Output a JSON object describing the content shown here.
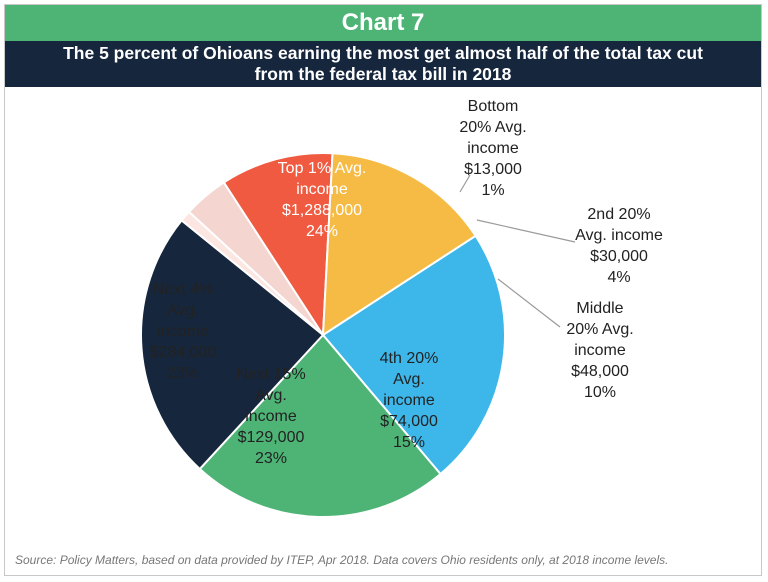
{
  "header": {
    "chart_number": "Chart 7",
    "title": "The 5 percent of Ohioans earning the most get almost half of the total tax cut\nfrom the federal tax bill in 2018"
  },
  "source": "Source: Policy Matters, based on data provided by ITEP, Apr 2018. Data covers Ohio residents only, at 2018 income levels.",
  "colors": {
    "title_bar": "#4db476",
    "subtitle_bar": "#16263d"
  },
  "chart_data": {
    "type": "pie",
    "title": "Chart 7",
    "slices": [
      {
        "name": "Bottom 20%",
        "avg_income": "$13,000",
        "value": 1,
        "label_lines": [
          "Bottom",
          "20% Avg.",
          "income",
          "$13,000",
          "1%"
        ],
        "color": "#fbe6e2"
      },
      {
        "name": "2nd 20%",
        "avg_income": "$30,000",
        "value": 4,
        "label_lines": [
          "2nd 20%",
          "Avg. income",
          "$30,000",
          "4%"
        ],
        "color": "#f4d5cf"
      },
      {
        "name": "Middle 20%",
        "avg_income": "$48,000",
        "value": 10,
        "label_lines": [
          "Middle",
          "20% Avg.",
          "income",
          "$48,000",
          "10%"
        ],
        "color": "#ef5a40"
      },
      {
        "name": "4th 20%",
        "avg_income": "$74,000",
        "value": 15,
        "label_lines": [
          "4th 20%",
          "Avg.",
          "income",
          "$74,000",
          "15%"
        ],
        "color": "#f6bb44"
      },
      {
        "name": "Next 15%",
        "avg_income": "$129,000",
        "value": 23,
        "label_lines": [
          "Next 15%",
          "Avg.",
          "income",
          "$129,000",
          "23%"
        ],
        "color": "#3db7ea"
      },
      {
        "name": "Next 4%",
        "avg_income": "$284,000",
        "value": 23,
        "label_lines": [
          "Next 4%",
          "Avg.",
          "income",
          "$284,000",
          "23%"
        ],
        "color": "#4db476"
      },
      {
        "name": "Top 1%",
        "avg_income": "$1,288,000",
        "value": 24,
        "label_lines": [
          "Top 1% Avg.",
          "income",
          "$1,288,000",
          "24%"
        ],
        "color": "#16263d"
      }
    ]
  }
}
